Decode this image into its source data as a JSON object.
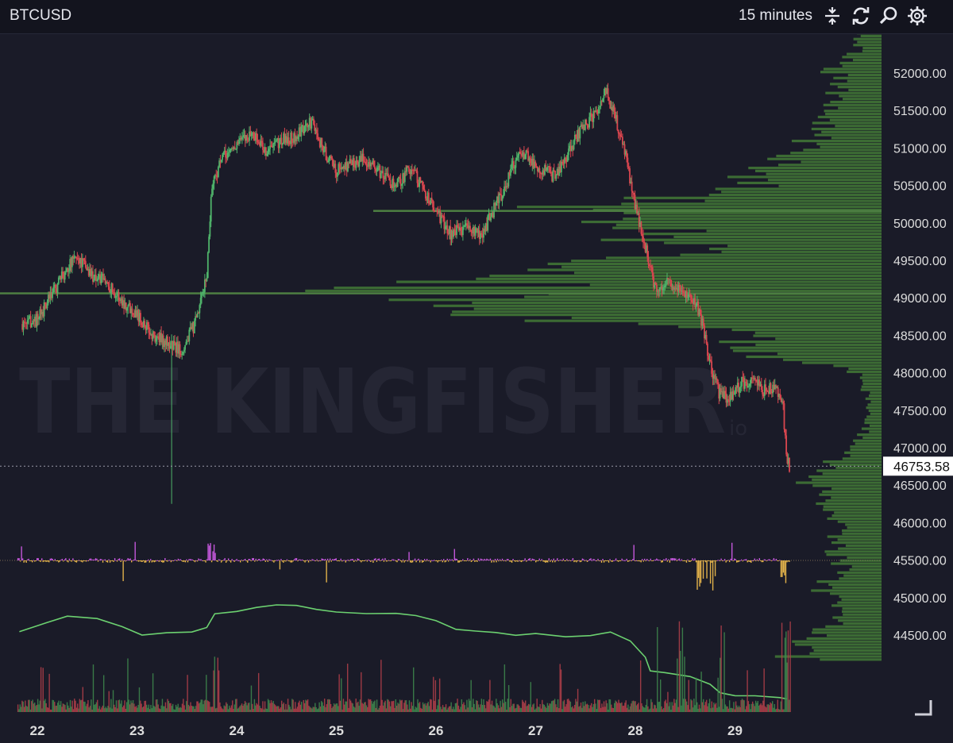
{
  "header": {
    "symbol": "BTCUSD",
    "interval": "15 minutes",
    "icons": [
      "compress-icon",
      "refresh-icon",
      "search-icon",
      "settings-icon"
    ]
  },
  "watermark": {
    "text": "THE KINGFISHER",
    "suffix": "io",
    "color": "#2a2b3a"
  },
  "colors": {
    "background": "#1a1b28",
    "up": "#4fb36a",
    "down": "#d9464f",
    "volume_profile": "#3c6b34",
    "net_flow_pos": "#c257d9",
    "net_flow_neg": "#e0b04a",
    "cvd_line": "#6cd170",
    "axis_text": "#dddddd"
  },
  "chart_data": {
    "type": "candlestick",
    "symbol": "BTCUSD",
    "interval": "15 minutes",
    "x_ticks": [
      "22",
      "23",
      "24",
      "25",
      "26",
      "27",
      "28",
      "29"
    ],
    "y_ticks": [
      52000,
      51500,
      51000,
      50500,
      50000,
      49500,
      49000,
      48500,
      48000,
      47500,
      47000,
      46500,
      46000,
      45500,
      45000,
      44500
    ],
    "ylim": [
      44150,
      52550
    ],
    "last_price": 46753.58,
    "price_path": [
      [
        21.85,
        48650
      ],
      [
        22.0,
        48700
      ],
      [
        22.15,
        49050
      ],
      [
        22.3,
        49400
      ],
      [
        22.4,
        49550
      ],
      [
        22.55,
        49300
      ],
      [
        22.7,
        49200
      ],
      [
        22.85,
        48950
      ],
      [
        23.0,
        48800
      ],
      [
        23.15,
        48500
      ],
      [
        23.3,
        48400
      ],
      [
        23.45,
        48300
      ],
      [
        23.6,
        48700
      ],
      [
        23.7,
        49300
      ],
      [
        23.75,
        50500
      ],
      [
        23.85,
        50850
      ],
      [
        24.0,
        51050
      ],
      [
        24.15,
        51200
      ],
      [
        24.3,
        50950
      ],
      [
        24.45,
        51100
      ],
      [
        24.6,
        51150
      ],
      [
        24.75,
        51350
      ],
      [
        24.9,
        50900
      ],
      [
        25.0,
        50700
      ],
      [
        25.15,
        50800
      ],
      [
        25.3,
        50850
      ],
      [
        25.45,
        50650
      ],
      [
        25.6,
        50500
      ],
      [
        25.75,
        50750
      ],
      [
        25.85,
        50500
      ],
      [
        26.0,
        50150
      ],
      [
        26.15,
        49850
      ],
      [
        26.3,
        49950
      ],
      [
        26.45,
        49800
      ],
      [
        26.55,
        50100
      ],
      [
        26.7,
        50500
      ],
      [
        26.8,
        50850
      ],
      [
        26.9,
        50950
      ],
      [
        27.0,
        50750
      ],
      [
        27.1,
        50700
      ],
      [
        27.2,
        50600
      ],
      [
        27.3,
        50850
      ],
      [
        27.45,
        51250
      ],
      [
        27.6,
        51450
      ],
      [
        27.7,
        51800
      ],
      [
        27.8,
        51400
      ],
      [
        27.9,
        50900
      ],
      [
        28.0,
        50200
      ],
      [
        28.1,
        49700
      ],
      [
        28.2,
        49100
      ],
      [
        28.3,
        49200
      ],
      [
        28.45,
        49100
      ],
      [
        28.55,
        49050
      ],
      [
        28.65,
        48800
      ],
      [
        28.75,
        48100
      ],
      [
        28.85,
        47700
      ],
      [
        28.95,
        47650
      ],
      [
        29.05,
        47850
      ],
      [
        29.2,
        47900
      ],
      [
        29.3,
        47750
      ],
      [
        29.4,
        47800
      ],
      [
        29.48,
        47600
      ],
      [
        29.52,
        46800
      ],
      [
        29.55,
        46753.58
      ]
    ],
    "volume_profile": {
      "bin_size": 40,
      "levels": [
        [
          44200,
          110
        ],
        [
          44500,
          80
        ],
        [
          44800,
          55
        ],
        [
          45100,
          70
        ],
        [
          45400,
          50
        ],
        [
          45700,
          65
        ],
        [
          46000,
          55
        ],
        [
          46300,
          70
        ],
        [
          46600,
          90
        ],
        [
          46900,
          45
        ],
        [
          47200,
          20
        ],
        [
          47600,
          15
        ],
        [
          48000,
          35
        ],
        [
          48250,
          200
        ],
        [
          48500,
          150
        ],
        [
          48800,
          520
        ],
        [
          49050,
          600
        ],
        [
          49300,
          380
        ],
        [
          49600,
          250
        ],
        [
          49900,
          300
        ],
        [
          50100,
          420
        ],
        [
          50450,
          170
        ],
        [
          50800,
          120
        ],
        [
          51100,
          90
        ],
        [
          51400,
          70
        ],
        [
          51700,
          55
        ],
        [
          52000,
          60
        ],
        [
          52300,
          30
        ]
      ]
    },
    "series": [
      {
        "name": "net_flow",
        "type": "bar"
      },
      {
        "name": "cvd",
        "type": "line"
      },
      {
        "name": "volume",
        "type": "bar"
      }
    ]
  }
}
